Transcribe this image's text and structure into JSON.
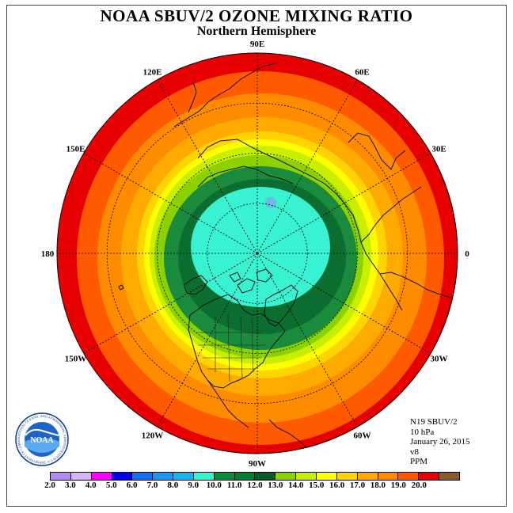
{
  "title": "NOAA SBUV/2 OZONE MIXING RATIO",
  "subtitle": "Northern Hemisphere",
  "map": {
    "projection": "north-polar-stereographic",
    "longitude_labels": [
      {
        "text": "90E",
        "lon": 90
      },
      {
        "text": "60E",
        "lon": 60
      },
      {
        "text": "30E",
        "lon": 30
      },
      {
        "text": "0",
        "lon": 0
      },
      {
        "text": "30W",
        "lon": -30
      },
      {
        "text": "60W",
        "lon": -60
      },
      {
        "text": "90W",
        "lon": -90
      },
      {
        "text": "120W",
        "lon": -120
      },
      {
        "text": "150W",
        "lon": -150
      },
      {
        "text": "180",
        "lon": 180
      },
      {
        "text": "150E",
        "lon": 150
      },
      {
        "text": "120E",
        "lon": 120
      }
    ],
    "contour_levels_ppm": [
      {
        "min": 19.0,
        "color": "#e60000"
      },
      {
        "min": 18.0,
        "color": "#ff5a00"
      },
      {
        "min": 17.0,
        "color": "#ff8c00"
      },
      {
        "min": 16.0,
        "color": "#ffaa00"
      },
      {
        "min": 15.0,
        "color": "#ffd400"
      },
      {
        "min": 14.0,
        "color": "#ffff00"
      },
      {
        "min": 13.0,
        "color": "#c8ee00"
      },
      {
        "min": 12.0,
        "color": "#8cd200"
      },
      {
        "min": 11.0,
        "color": "#1a8a3c"
      },
      {
        "min": 10.0,
        "color": "#0b6e30"
      },
      {
        "min": 9.0,
        "color": "#39f2d2"
      }
    ]
  },
  "info": {
    "instrument": "N19 SBUV/2",
    "level": "10 hPa",
    "date": "January 26, 2015",
    "version": "v8",
    "units": "PPM"
  },
  "colorbar": {
    "colors": [
      "#b38cf2",
      "#d6b4f5",
      "#ff00ff",
      "#0000ee",
      "#1a6ef0",
      "#1e96f0",
      "#18b4f0",
      "#39f2d2",
      "#0f8a3c",
      "#0b7a33",
      "#095c26",
      "#8cd200",
      "#c8ee00",
      "#ffff00",
      "#ffd400",
      "#ffaa00",
      "#ff8c00",
      "#ff5a00",
      "#e60000",
      "#8b5a2b"
    ],
    "labels": [
      "2.0",
      "3.0",
      "4.0",
      "5.0",
      "6.0",
      "7.0",
      "8.0",
      "9.0",
      "10.0",
      "11.0",
      "12.0",
      "13.0",
      "14.0",
      "15.0",
      "16.0",
      "17.0",
      "18.0",
      "19.0",
      "20.0"
    ]
  },
  "logo": {
    "text": "NOAA",
    "ring_text": "NATIONAL OCEANIC AND ATMOSPHERIC ADMINISTRATION U.S. DEPARTMENT OF COMMERCE"
  }
}
